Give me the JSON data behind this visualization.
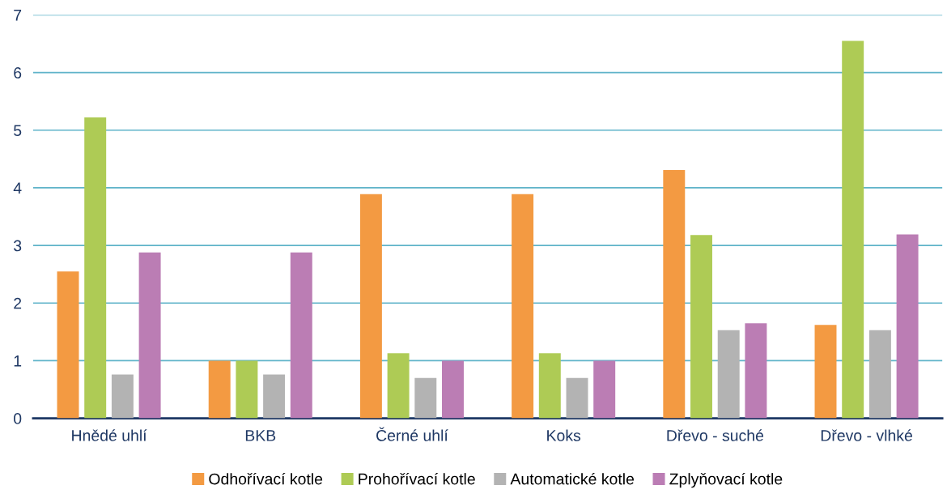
{
  "chart_data": {
    "type": "bar",
    "categories": [
      "Hnědé uhlí",
      "BKB",
      "Černé uhlí",
      "Koks",
      "Dřevo - suché",
      "Dřevo - vlhké"
    ],
    "series": [
      {
        "name": "Odhořívací kotle",
        "color": "#f39a42",
        "values": [
          2.55,
          1.0,
          3.89,
          3.89,
          4.31,
          1.62
        ]
      },
      {
        "name": "Prohořívací kotle",
        "color": "#aecb55",
        "values": [
          5.22,
          1.0,
          1.13,
          1.13,
          3.18,
          6.55
        ]
      },
      {
        "name": "Automatické kotle",
        "color": "#b3b3b3",
        "values": [
          0.76,
          0.76,
          0.7,
          0.7,
          1.53,
          1.53
        ]
      },
      {
        "name": "Zplyňovací kotle",
        "color": "#bb7db4",
        "values": [
          2.88,
          2.88,
          1.0,
          1.0,
          1.65,
          3.19
        ]
      }
    ],
    "ylim": [
      0,
      7
    ],
    "yticks": [
      0,
      1,
      2,
      3,
      4,
      5,
      6,
      7
    ],
    "grid": "y",
    "legend": "bottom"
  }
}
